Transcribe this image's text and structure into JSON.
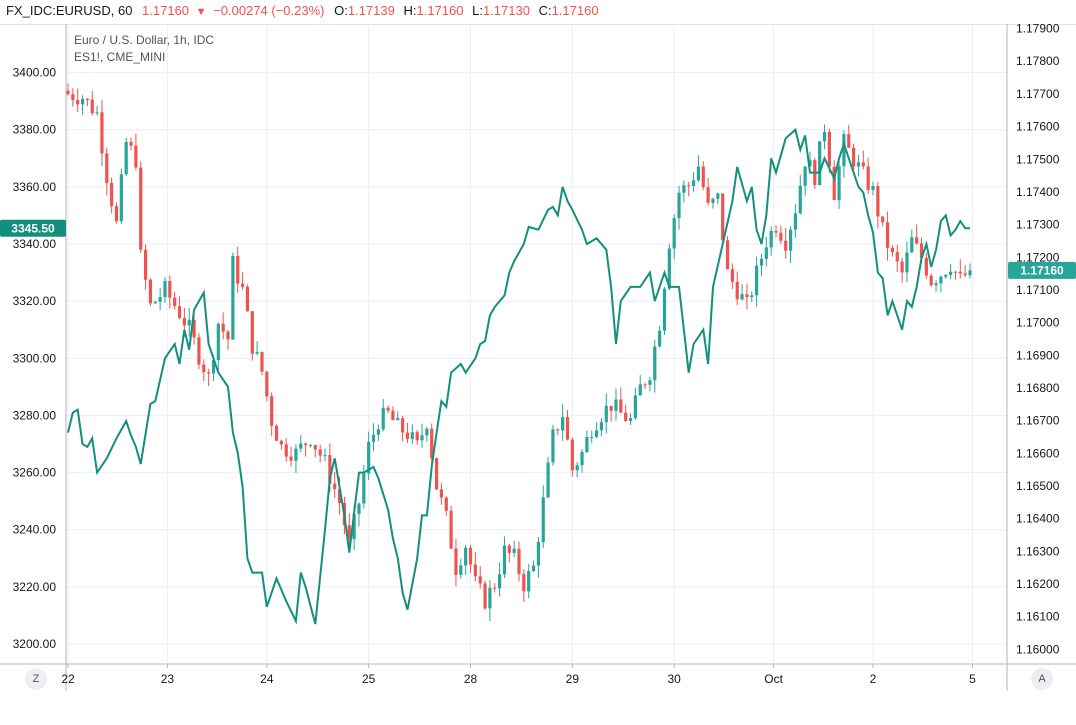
{
  "header": {
    "symbol": "FX_IDC:EURUSD, 60",
    "last": "1.17160",
    "arrow": "▼",
    "change": "−0.00274 (−0.23%)",
    "o_label": "O:",
    "o_value": "1.17139",
    "h_label": "H:",
    "h_value": "1.17160",
    "l_label": "L:",
    "l_value": "1.17130",
    "c_label": "C:",
    "c_value": "1.17160"
  },
  "legend": {
    "main": "Euro / U.S. Dollar, 1h, IDC",
    "compare": "ES1!, CME_MINI"
  },
  "corner_buttons": {
    "left": "Z",
    "right": "A"
  },
  "colors": {
    "up": "#26a69a",
    "down": "#ef5350",
    "compare_line": "#138f7e",
    "grid": "#eceef2",
    "axis": "#b2b5be",
    "price_label_bg": "#138f7e"
  },
  "chart_data": {
    "type": "candlestick_with_line",
    "left_axis": {
      "series": "ES1!",
      "ylim": [
        3193,
        3417
      ],
      "ticks": [
        "3200.00",
        "3220.00",
        "3240.00",
        "3260.00",
        "3280.00",
        "3300.00",
        "3320.00",
        "3340.00",
        "3360.00",
        "3380.00",
        "3400.00"
      ],
      "current_label": "3345.50"
    },
    "right_axis": {
      "series": "EURUSD",
      "ylim": [
        1.15955,
        1.17914
      ],
      "ticks": [
        "1.16000",
        "1.16100",
        "1.16200",
        "1.16300",
        "1.16400",
        "1.16500",
        "1.16600",
        "1.16700",
        "1.16800",
        "1.16900",
        "1.17000",
        "1.17100",
        "1.17200",
        "1.17300",
        "1.17400",
        "1.17500",
        "1.17600",
        "1.17700",
        "1.17800",
        "1.17900"
      ],
      "current_label": "1.17160"
    },
    "x_axis": {
      "ticks": [
        "22",
        "23",
        "24",
        "25",
        "28",
        "29",
        "30",
        "Oct",
        "2",
        "5"
      ]
    },
    "candles_anchor": [
      [
        0,
        1.177
      ],
      [
        3,
        1.1769
      ],
      [
        6,
        1.1764
      ],
      [
        8,
        1.1745
      ],
      [
        10,
        1.173
      ],
      [
        12,
        1.1755
      ],
      [
        14,
        1.175
      ],
      [
        15,
        1.172
      ],
      [
        17,
        1.1705
      ],
      [
        20,
        1.171
      ],
      [
        23,
        1.1703
      ],
      [
        25,
        1.1698
      ],
      [
        27,
        1.169
      ],
      [
        29,
        1.1683
      ],
      [
        31,
        1.17
      ],
      [
        33,
        1.1695
      ],
      [
        34,
        1.1718
      ],
      [
        36,
        1.171
      ],
      [
        38,
        1.1693
      ],
      [
        40,
        1.1685
      ],
      [
        42,
        1.167
      ],
      [
        44,
        1.1662
      ],
      [
        47,
        1.166
      ],
      [
        50,
        1.1665
      ],
      [
        53,
        1.1657
      ],
      [
        56,
        1.1645
      ],
      [
        58,
        1.1632
      ],
      [
        60,
        1.1645
      ],
      [
        62,
        1.1662
      ],
      [
        64,
        1.167
      ],
      [
        66,
        1.1672
      ],
      [
        68,
        1.1668
      ],
      [
        70,
        1.1666
      ],
      [
        72,
        1.1662
      ],
      [
        74,
        1.167
      ],
      [
        76,
        1.165
      ],
      [
        78,
        1.164
      ],
      [
        80,
        1.1625
      ],
      [
        82,
        1.1632
      ],
      [
        84,
        1.162
      ],
      [
        86,
        1.1615
      ],
      [
        88,
        1.162
      ],
      [
        90,
        1.163
      ],
      [
        92,
        1.1628
      ],
      [
        94,
        1.162
      ],
      [
        96,
        1.1625
      ],
      [
        98,
        1.1645
      ],
      [
        100,
        1.1665
      ],
      [
        102,
        1.1672
      ],
      [
        104,
        1.1655
      ],
      [
        106,
        1.166
      ],
      [
        108,
        1.1668
      ],
      [
        110,
        1.1672
      ],
      [
        112,
        1.1675
      ],
      [
        114,
        1.1672
      ],
      [
        116,
        1.167
      ],
      [
        118,
        1.168
      ],
      [
        120,
        1.1685
      ],
      [
        122,
        1.17
      ],
      [
        124,
        1.1725
      ],
      [
        126,
        1.174
      ],
      [
        128,
        1.1742
      ],
      [
        130,
        1.1748
      ],
      [
        132,
        1.1735
      ],
      [
        134,
        1.1738
      ],
      [
        136,
        1.1715
      ],
      [
        138,
        1.171
      ],
      [
        140,
        1.1705
      ],
      [
        142,
        1.1715
      ],
      [
        144,
        1.1725
      ],
      [
        146,
        1.173
      ],
      [
        148,
        1.1725
      ],
      [
        150,
        1.1735
      ],
      [
        152,
        1.175
      ],
      [
        154,
        1.1745
      ],
      [
        156,
        1.176
      ],
      [
        158,
        1.174
      ],
      [
        160,
        1.1755
      ],
      [
        162,
        1.175
      ],
      [
        164,
        1.1745
      ],
      [
        166,
        1.174
      ],
      [
        168,
        1.1728
      ],
      [
        170,
        1.172
      ],
      [
        172,
        1.1715
      ],
      [
        174,
        1.1725
      ],
      [
        176,
        1.172
      ],
      [
        178,
        1.1713
      ],
      [
        180,
        1.1715
      ],
      [
        182,
        1.1718
      ],
      [
        184,
        1.1713
      ],
      [
        186,
        1.1716
      ]
    ],
    "candles_count": 187,
    "compare_line": [
      [
        0,
        3274
      ],
      [
        1,
        3281
      ],
      [
        2,
        3282
      ],
      [
        3,
        3270
      ],
      [
        4,
        3269
      ],
      [
        5,
        3272
      ],
      [
        6,
        3260
      ],
      [
        8,
        3265
      ],
      [
        10,
        3272
      ],
      [
        12,
        3278
      ],
      [
        13,
        3273
      ],
      [
        14,
        3269
      ],
      [
        15,
        3263
      ],
      [
        17,
        3284
      ],
      [
        18,
        3285
      ],
      [
        20,
        3300
      ],
      [
        22,
        3305
      ],
      [
        23,
        3298
      ],
      [
        24,
        3310
      ],
      [
        25,
        3303
      ],
      [
        26,
        3317
      ],
      [
        28,
        3323
      ],
      [
        29,
        3305
      ],
      [
        31,
        3295
      ],
      [
        33,
        3290
      ],
      [
        34,
        3274
      ],
      [
        35,
        3267
      ],
      [
        36,
        3255
      ],
      [
        37,
        3230
      ],
      [
        38,
        3225
      ],
      [
        40,
        3225
      ],
      [
        41,
        3213
      ],
      [
        43,
        3223
      ],
      [
        45,
        3215
      ],
      [
        47,
        3208
      ],
      [
        48,
        3225
      ],
      [
        49,
        3220
      ],
      [
        51,
        3207
      ],
      [
        53,
        3240
      ],
      [
        54,
        3258
      ],
      [
        55,
        3265
      ],
      [
        57,
        3245
      ],
      [
        58,
        3232
      ],
      [
        60,
        3260
      ],
      [
        61,
        3260
      ],
      [
        63,
        3262
      ],
      [
        64,
        3258
      ],
      [
        66,
        3247
      ],
      [
        67,
        3237
      ],
      [
        68,
        3230
      ],
      [
        69,
        3218
      ],
      [
        70,
        3212
      ],
      [
        72,
        3230
      ],
      [
        73,
        3245
      ],
      [
        74,
        3245
      ],
      [
        75,
        3262
      ],
      [
        76,
        3274
      ],
      [
        77,
        3285
      ],
      [
        78,
        3283
      ],
      [
        79,
        3295
      ],
      [
        81,
        3298
      ],
      [
        82,
        3295
      ],
      [
        84,
        3300
      ],
      [
        85,
        3305
      ],
      [
        86,
        3306
      ],
      [
        87,
        3315
      ],
      [
        88,
        3318
      ],
      [
        90,
        3322
      ],
      [
        91,
        3330
      ],
      [
        92,
        3334
      ],
      [
        94,
        3340
      ],
      [
        95,
        3346
      ],
      [
        97,
        3345
      ],
      [
        99,
        3352
      ],
      [
        100,
        3353
      ],
      [
        101,
        3350
      ],
      [
        102,
        3360
      ],
      [
        103,
        3355
      ],
      [
        104,
        3352
      ],
      [
        106,
        3345
      ],
      [
        107,
        3340
      ],
      [
        109,
        3342
      ],
      [
        111,
        3338
      ],
      [
        112,
        3325
      ],
      [
        113,
        3305
      ],
      [
        114,
        3320
      ],
      [
        116,
        3325
      ],
      [
        118,
        3325
      ],
      [
        120,
        3330
      ],
      [
        121,
        3320
      ],
      [
        123,
        3330
      ],
      [
        124,
        3325
      ],
      [
        126,
        3325
      ],
      [
        127,
        3310
      ],
      [
        128,
        3295
      ],
      [
        129,
        3305
      ],
      [
        131,
        3310
      ],
      [
        132,
        3298
      ],
      [
        133,
        3325
      ],
      [
        135,
        3340
      ],
      [
        137,
        3355
      ],
      [
        138,
        3367
      ],
      [
        140,
        3355
      ],
      [
        141,
        3360
      ],
      [
        142,
        3345
      ],
      [
        143,
        3340
      ],
      [
        144,
        3350
      ],
      [
        145,
        3370
      ],
      [
        146,
        3365
      ],
      [
        148,
        3377
      ],
      [
        150,
        3380
      ],
      [
        151,
        3373
      ],
      [
        152,
        3378
      ],
      [
        153,
        3365
      ],
      [
        155,
        3365
      ],
      [
        156,
        3370
      ],
      [
        158,
        3363
      ],
      [
        159,
        3370
      ],
      [
        160,
        3375
      ],
      [
        161,
        3370
      ],
      [
        162,
        3365
      ],
      [
        163,
        3360
      ],
      [
        164,
        3358
      ],
      [
        165,
        3350
      ],
      [
        166,
        3344
      ],
      [
        167,
        3330
      ],
      [
        168,
        3328
      ],
      [
        169,
        3315
      ],
      [
        170,
        3320
      ],
      [
        172,
        3310
      ],
      [
        173,
        3320
      ],
      [
        174,
        3318
      ],
      [
        175,
        3325
      ],
      [
        176,
        3335
      ],
      [
        177,
        3340
      ],
      [
        178,
        3332
      ],
      [
        179,
        3338
      ],
      [
        180,
        3348
      ],
      [
        181,
        3350
      ],
      [
        182,
        3343
      ],
      [
        183,
        3345
      ],
      [
        184,
        3348
      ],
      [
        185,
        3345.5
      ],
      [
        186,
        3345.5
      ]
    ]
  }
}
